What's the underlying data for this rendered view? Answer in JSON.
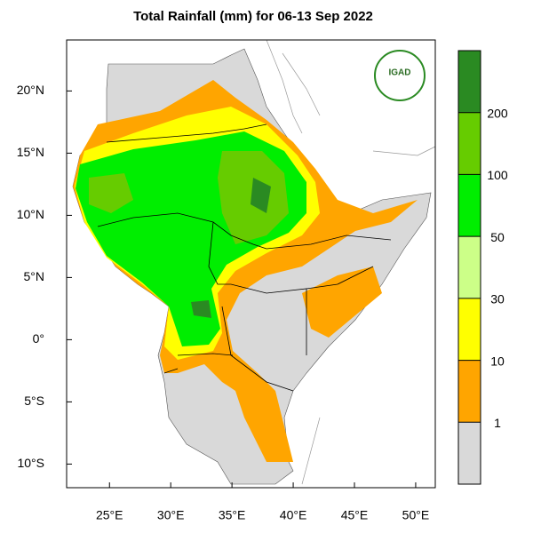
{
  "title": "Total Rainfall (mm) for 06-13 Sep 2022",
  "logo_text": "IGAD",
  "map": {
    "xlim": [
      21.5,
      51.6
    ],
    "ylim": [
      -11.9,
      24.1
    ],
    "xticks": [
      {
        "value": 25,
        "label": "25°E"
      },
      {
        "value": 30,
        "label": "30°E"
      },
      {
        "value": 35,
        "label": "35°E"
      },
      {
        "value": 40,
        "label": "40°E"
      },
      {
        "value": 45,
        "label": "45°E"
      },
      {
        "value": 50,
        "label": "50°E"
      }
    ],
    "yticks": [
      {
        "value": -10,
        "label": "10°S"
      },
      {
        "value": -5,
        "label": "5°S"
      },
      {
        "value": 0,
        "label": "0°"
      },
      {
        "value": 5,
        "label": "5°N"
      },
      {
        "value": 10,
        "label": "10°N"
      },
      {
        "value": 15,
        "label": "15°N"
      },
      {
        "value": 20,
        "label": "20°N"
      }
    ]
  },
  "colorbar": {
    "colors": [
      "#d9d9d9",
      "#ffa500",
      "#ffff00",
      "#ccff88",
      "#00ee00",
      "#66cc00",
      "#2a8a22"
    ],
    "ticks": [
      1,
      10,
      30,
      50,
      100,
      200
    ]
  }
}
